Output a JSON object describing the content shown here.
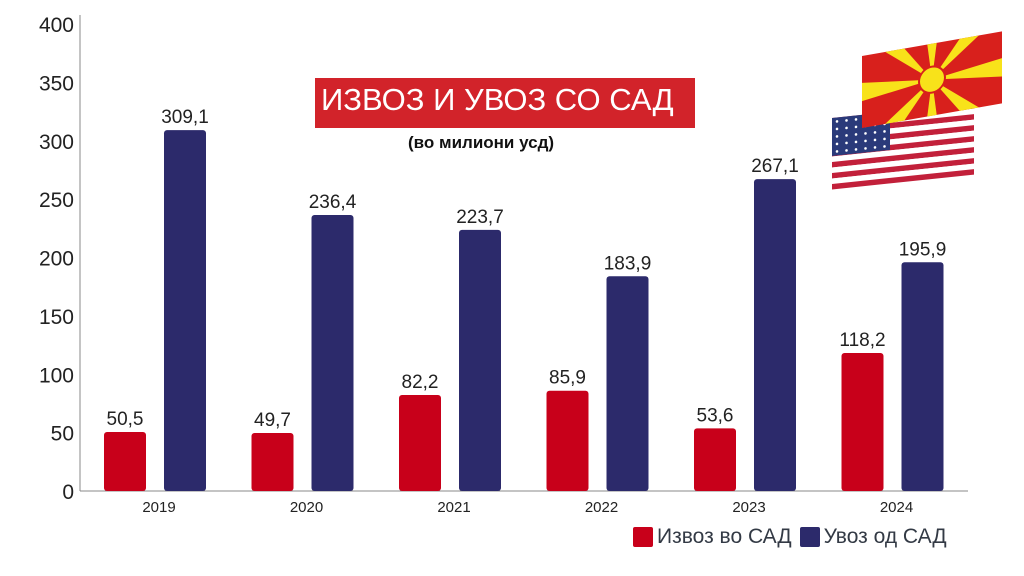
{
  "chart_data": {
    "type": "bar",
    "title": "ИЗВОЗ И УВОЗ СО САД",
    "subtitle": "(во милиони усд)",
    "categories": [
      "2019",
      "2020",
      "2021",
      "2022",
      "2023",
      "2024"
    ],
    "series": [
      {
        "name": "Извоз во САД",
        "color": "#c8001a",
        "values": [
          50.5,
          49.7,
          82.2,
          85.9,
          53.6,
          118.2
        ],
        "labels": [
          "50,5",
          "49,7",
          "82,2",
          "85,9",
          "53,6",
          "118,2"
        ]
      },
      {
        "name": "Увоз од САД",
        "color": "#2c2a6b",
        "values": [
          309.1,
          236.4,
          223.7,
          183.9,
          267.1,
          195.9
        ],
        "labels": [
          "309,1",
          "236,4",
          "223,7",
          "183,9",
          "267,1",
          "195,9"
        ]
      }
    ],
    "ylim": [
      0,
      400
    ],
    "yticks": [
      "0",
      "50",
      "100",
      "150",
      "200",
      "250",
      "300",
      "350",
      "400"
    ],
    "grid": false,
    "legend": "bottom-right",
    "decorations": [
      "flag-north-macedonia",
      "flag-usa"
    ]
  }
}
